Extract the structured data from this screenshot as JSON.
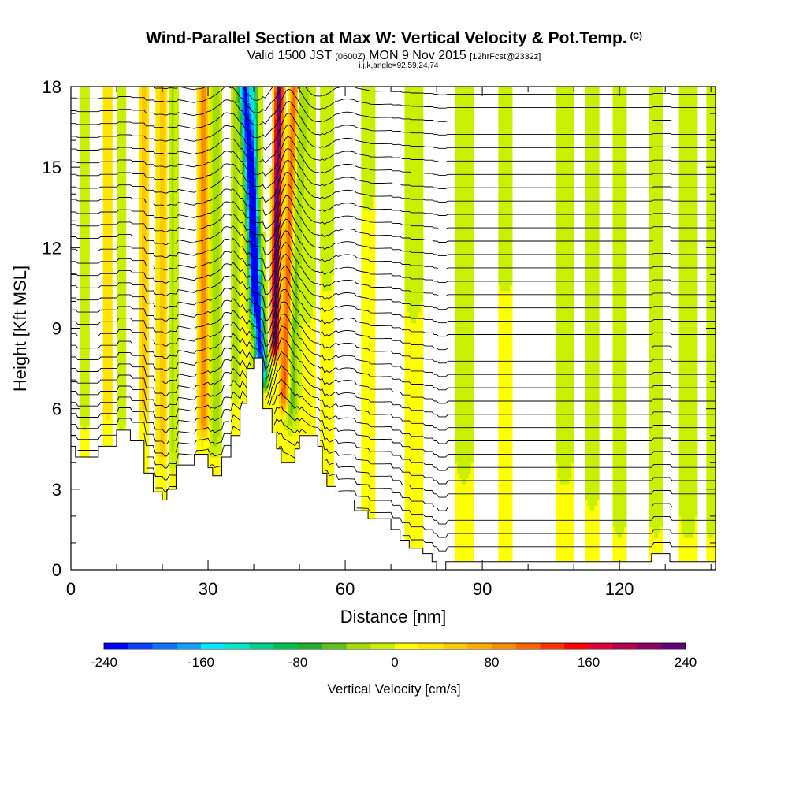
{
  "header": {
    "title": "Wind-Parallel Section at Max W: Vertical Velocity & Pot.Temp.",
    "title_tag": "(C)",
    "valid_prefix": "Valid 1500 JST",
    "valid_z": "(0600Z)",
    "valid_date": "MON 9 Nov 2015",
    "forecast": "[12hrFcst@2332z]",
    "indices": "i,j,k,angle=92,59,24,74"
  },
  "chart_data": {
    "type": "heatmap",
    "xlabel": "Distance [nm]",
    "ylabel": "Height [Kft MSL]",
    "xlim": [
      0,
      141
    ],
    "ylim": [
      0,
      18
    ],
    "xticks": [
      0,
      30,
      60,
      90,
      120
    ],
    "yticks": [
      0,
      3,
      6,
      9,
      12,
      15,
      18
    ],
    "colorbar": {
      "title": "Vertical Velocity [cm/s]",
      "min": -240,
      "max": 240,
      "step": 20,
      "tick_values": [
        -240,
        -160,
        -80,
        0,
        80,
        160,
        240
      ],
      "tick_labels": [
        "-240",
        "-160",
        "-80",
        "0",
        "80",
        "160",
        "240"
      ],
      "colors": [
        "#0000ff",
        "#0a40ff",
        "#1070ff",
        "#10a0ff",
        "#00e6ff",
        "#00e6c8",
        "#00d28c",
        "#00c050",
        "#22b02a",
        "#60c018",
        "#a6dc00",
        "#c8f000",
        "#ffff00",
        "#ffe600",
        "#ffc800",
        "#ffaa00",
        "#ff8c00",
        "#ff6400",
        "#ff3200",
        "#ff0000",
        "#e0003c",
        "#b80050",
        "#8c0064",
        "#640078"
      ]
    },
    "terrain_height_kft": [
      [
        0,
        4.6
      ],
      [
        1,
        4.6
      ],
      [
        1,
        4.2
      ],
      [
        6,
        4.2
      ],
      [
        6,
        4.6
      ],
      [
        10,
        4.6
      ],
      [
        10,
        5.2
      ],
      [
        13,
        5.2
      ],
      [
        13,
        4.8
      ],
      [
        16,
        4.8
      ],
      [
        16,
        3.6
      ],
      [
        18,
        3.6
      ],
      [
        18,
        2.9
      ],
      [
        20,
        2.9
      ],
      [
        20,
        2.6
      ],
      [
        21,
        2.6
      ],
      [
        21,
        3.0
      ],
      [
        23,
        3.0
      ],
      [
        23,
        3.9
      ],
      [
        27,
        3.9
      ],
      [
        27,
        4.3
      ],
      [
        30,
        4.3
      ],
      [
        30,
        3.8
      ],
      [
        31,
        3.8
      ],
      [
        31,
        3.5
      ],
      [
        33,
        3.5
      ],
      [
        33,
        4.2
      ],
      [
        35,
        4.2
      ],
      [
        35,
        5.0
      ],
      [
        37,
        5.0
      ],
      [
        37,
        6.2
      ],
      [
        38.5,
        6.2
      ],
      [
        38.5,
        7.5
      ],
      [
        40,
        7.5
      ],
      [
        40,
        7.9
      ],
      [
        42,
        7.9
      ],
      [
        42,
        6.0
      ],
      [
        44,
        6.0
      ],
      [
        44,
        5.1
      ],
      [
        45,
        5.1
      ],
      [
        45,
        4.5
      ],
      [
        46,
        4.5
      ],
      [
        46,
        4.0
      ],
      [
        49,
        4.0
      ],
      [
        49,
        4.5
      ],
      [
        50,
        4.5
      ],
      [
        50,
        5.0
      ],
      [
        54,
        5.0
      ],
      [
        54,
        4.6
      ],
      [
        55,
        4.6
      ],
      [
        55,
        3.6
      ],
      [
        56,
        3.6
      ],
      [
        56,
        3.1
      ],
      [
        58,
        3.1
      ],
      [
        58,
        2.6
      ],
      [
        62,
        2.6
      ],
      [
        62,
        2.2
      ],
      [
        65,
        2.2
      ],
      [
        65,
        1.9
      ],
      [
        70,
        1.9
      ],
      [
        70,
        1.5
      ],
      [
        72,
        1.5
      ],
      [
        72,
        1.1
      ],
      [
        74,
        1.1
      ],
      [
        74,
        0.8
      ],
      [
        77,
        0.8
      ],
      [
        77,
        0.6
      ],
      [
        79,
        0.6
      ],
      [
        79,
        0.3
      ],
      [
        80,
        0.3
      ],
      [
        80,
        0.0
      ],
      [
        82,
        0.0
      ],
      [
        82,
        0.3
      ],
      [
        127,
        0.3
      ],
      [
        127,
        0.6
      ],
      [
        131,
        0.6
      ],
      [
        131,
        0.3
      ],
      [
        141,
        0.3
      ]
    ],
    "w_features_cm_s": [
      {
        "x": 42,
        "z0": 6.5,
        "z1": 18,
        "tilt": -0.35,
        "halfwidth": 1.2,
        "w": -230
      },
      {
        "x": 44.5,
        "z0": 7.5,
        "z1": 18,
        "tilt": 0.1,
        "halfwidth": 0.9,
        "w": 240
      },
      {
        "x": 46.5,
        "z0": 5.5,
        "z1": 18,
        "tilt": 0.2,
        "halfwidth": 1.0,
        "w": 130
      },
      {
        "x": 40,
        "z0": 9,
        "z1": 18,
        "tilt": 0.0,
        "halfwidth": 1.0,
        "w": -110
      },
      {
        "x": 48,
        "z0": 5,
        "z1": 18,
        "tilt": 0.15,
        "halfwidth": 1.3,
        "w": -60
      },
      {
        "x": 29,
        "z0": 4.5,
        "z1": 18,
        "tilt": 0.0,
        "halfwidth": 1.2,
        "w": 80
      },
      {
        "x": 31.5,
        "z0": 4.0,
        "z1": 18,
        "tilt": 0.0,
        "halfwidth": 1.1,
        "w": -40
      },
      {
        "x": 20,
        "z0": 3.5,
        "z1": 18,
        "tilt": 0.0,
        "halfwidth": 1.2,
        "w": 50
      },
      {
        "x": 22,
        "z0": 3.5,
        "z1": 18,
        "tilt": 0.0,
        "halfwidth": 1.2,
        "w": -30
      },
      {
        "x": 16,
        "z0": 5,
        "z1": 18,
        "tilt": 0.0,
        "halfwidth": 1.0,
        "w": 40
      },
      {
        "x": 8,
        "z0": 5,
        "z1": 18,
        "tilt": 0.0,
        "halfwidth": 1.0,
        "w": 30
      },
      {
        "x": 11,
        "z0": 5,
        "z1": 18,
        "tilt": 0.0,
        "halfwidth": 1.0,
        "w": -20
      },
      {
        "x": 3,
        "z0": 5,
        "z1": 18,
        "tilt": 0.0,
        "halfwidth": 1.0,
        "w": -20
      },
      {
        "x": 36,
        "z0": 6,
        "z1": 18,
        "tilt": 0.0,
        "halfwidth": 0.8,
        "w": -30
      },
      {
        "x": 52,
        "z0": 9,
        "z1": 18,
        "tilt": 0.0,
        "halfwidth": 1.2,
        "w": -20
      },
      {
        "x": 56,
        "z0": 10,
        "z1": 18,
        "tilt": 0.0,
        "halfwidth": 1.2,
        "w": -15
      },
      {
        "x": 65,
        "z0": 13,
        "z1": 18,
        "tilt": 0.0,
        "halfwidth": 1.2,
        "w": -15
      },
      {
        "x": 75,
        "z0": 9,
        "z1": 18,
        "tilt": 0.0,
        "halfwidth": 1.5,
        "w": -20
      },
      {
        "x": 86,
        "z0": 3,
        "z1": 18,
        "tilt": 0.0,
        "halfwidth": 1.5,
        "w": -20
      },
      {
        "x": 95,
        "z0": 10,
        "z1": 18,
        "tilt": 0.0,
        "halfwidth": 1.5,
        "w": -15
      },
      {
        "x": 108,
        "z0": 3,
        "z1": 18,
        "tilt": 0.0,
        "halfwidth": 1.4,
        "w": -25
      },
      {
        "x": 114,
        "z0": 2,
        "z1": 18,
        "tilt": 0.0,
        "halfwidth": 1.4,
        "w": -20
      },
      {
        "x": 120,
        "z0": 1,
        "z1": 18,
        "tilt": 0.0,
        "halfwidth": 1.4,
        "w": -20
      },
      {
        "x": 128,
        "z0": 1,
        "z1": 18,
        "tilt": 0.0,
        "halfwidth": 1.4,
        "w": -20
      },
      {
        "x": 135,
        "z0": 1,
        "z1": 18,
        "tilt": 0.0,
        "halfwidth": 1.4,
        "w": -25
      },
      {
        "x": 140,
        "z0": 1,
        "z1": 18,
        "tilt": 0.0,
        "halfwidth": 1.0,
        "w": -20
      }
    ],
    "theta_contour_levels_kft": [
      0.5,
      1.0,
      1.5,
      2.0,
      2.5,
      3.0,
      3.5,
      4.0,
      4.5,
      5.0,
      5.5,
      6.0,
      6.5,
      7.0,
      7.5,
      8.0,
      8.5,
      9.0,
      9.5,
      10.0,
      10.5,
      11.0,
      11.5,
      12.0,
      12.5,
      13.0,
      13.5,
      14.0,
      14.5,
      15.0,
      15.5,
      16.0,
      16.5,
      17.0,
      17.5
    ]
  }
}
